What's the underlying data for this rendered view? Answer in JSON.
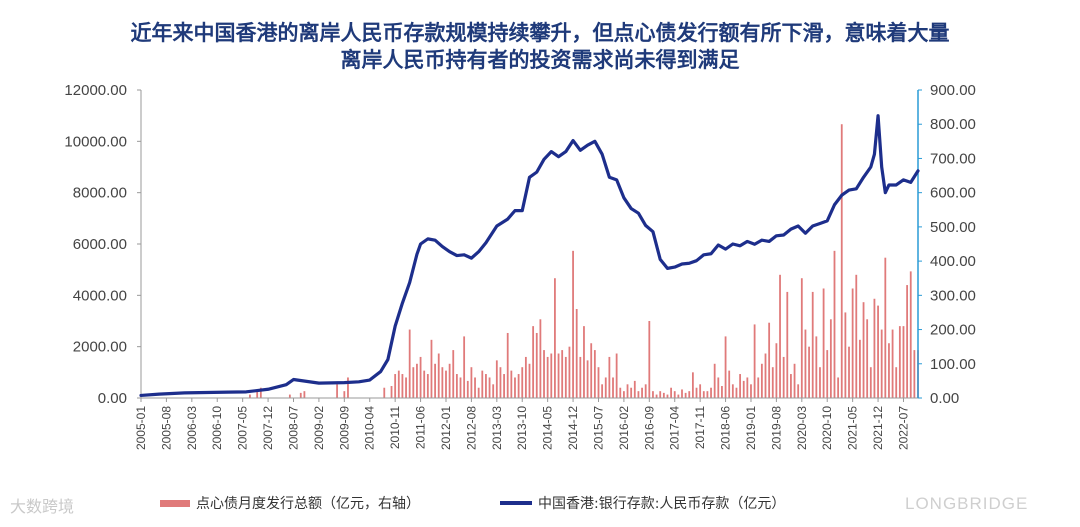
{
  "title": {
    "line1": "近年来中国香港的离岸人民币存款规模持续攀升，但点心债发行额有所下滑，意味着大量",
    "line2": "离岸人民币持有者的投资需求尚未得到满足"
  },
  "watermarks": {
    "left": "大数跨境",
    "right": "LONGBRIDGE"
  },
  "colors": {
    "bars": "#e07a7a",
    "line": "#1d2e8c",
    "axis_right": "#2a9bd6"
  },
  "chart_data": {
    "type": "bar+line",
    "x_tick_labels": [
      "2005-01",
      "2005-08",
      "2006-03",
      "2006-10",
      "2007-05",
      "2007-12",
      "2008-07",
      "2009-02",
      "2009-09",
      "2010-04",
      "2010-11",
      "2011-06",
      "2012-01",
      "2012-08",
      "2013-03",
      "2013-10",
      "2014-05",
      "2014-12",
      "2015-07",
      "2016-02",
      "2016-09",
      "2017-04",
      "2017-11",
      "2018-06",
      "2019-01",
      "2019-08",
      "2020-03",
      "2020-10",
      "2021-05",
      "2021-12",
      "2022-07"
    ],
    "left_axis": {
      "ylim": [
        0,
        12000
      ],
      "ticks": [
        "0.00",
        "2000.00",
        "4000.00",
        "6000.00",
        "8000.00",
        "10000.00",
        "12000.00"
      ]
    },
    "right_axis": {
      "ylim": [
        0,
        900
      ],
      "ticks": [
        "0.00",
        "100.00",
        "200.00",
        "300.00",
        "400.00",
        "500.00",
        "600.00",
        "700.00",
        "800.00",
        "900.00"
      ]
    },
    "grid": false,
    "legend_position": "bottom",
    "series": [
      {
        "name": "点心债月度发行总额（亿元，右轴）",
        "type": "bar",
        "axis": "right",
        "points": [
          [
            "2007-07",
            10
          ],
          [
            "2007-09",
            20
          ],
          [
            "2007-10",
            30
          ],
          [
            "2008-06",
            10
          ],
          [
            "2008-09",
            15
          ],
          [
            "2008-10",
            20
          ],
          [
            "2009-07",
            40
          ],
          [
            "2009-09",
            20
          ],
          [
            "2009-10",
            60
          ],
          [
            "2010-08",
            30
          ],
          [
            "2010-10",
            35
          ],
          [
            "2010-11",
            70
          ],
          [
            "2010-12",
            80
          ],
          [
            "2011-01",
            70
          ],
          [
            "2011-02",
            60
          ],
          [
            "2011-03",
            200
          ],
          [
            "2011-04",
            90
          ],
          [
            "2011-05",
            100
          ],
          [
            "2011-06",
            120
          ],
          [
            "2011-07",
            80
          ],
          [
            "2011-08",
            70
          ],
          [
            "2011-09",
            170
          ],
          [
            "2011-10",
            100
          ],
          [
            "2011-11",
            130
          ],
          [
            "2011-12",
            90
          ],
          [
            "2012-01",
            80
          ],
          [
            "2012-02",
            100
          ],
          [
            "2012-03",
            140
          ],
          [
            "2012-04",
            70
          ],
          [
            "2012-05",
            60
          ],
          [
            "2012-06",
            180
          ],
          [
            "2012-07",
            50
          ],
          [
            "2012-08",
            90
          ],
          [
            "2012-09",
            60
          ],
          [
            "2012-10",
            30
          ],
          [
            "2012-11",
            80
          ],
          [
            "2012-12",
            70
          ],
          [
            "2013-01",
            60
          ],
          [
            "2013-02",
            40
          ],
          [
            "2013-03",
            110
          ],
          [
            "2013-04",
            90
          ],
          [
            "2013-05",
            70
          ],
          [
            "2013-06",
            190
          ],
          [
            "2013-07",
            80
          ],
          [
            "2013-08",
            60
          ],
          [
            "2013-09",
            70
          ],
          [
            "2013-10",
            90
          ],
          [
            "2013-11",
            120
          ],
          [
            "2013-12",
            100
          ],
          [
            "2014-01",
            210
          ],
          [
            "2014-02",
            190
          ],
          [
            "2014-03",
            230
          ],
          [
            "2014-04",
            140
          ],
          [
            "2014-05",
            120
          ],
          [
            "2014-06",
            130
          ],
          [
            "2014-07",
            350
          ],
          [
            "2014-08",
            130
          ],
          [
            "2014-09",
            140
          ],
          [
            "2014-10",
            120
          ],
          [
            "2014-11",
            150
          ],
          [
            "2014-12",
            430
          ],
          [
            "2015-01",
            260
          ],
          [
            "2015-02",
            120
          ],
          [
            "2015-03",
            210
          ],
          [
            "2015-04",
            110
          ],
          [
            "2015-05",
            160
          ],
          [
            "2015-06",
            140
          ],
          [
            "2015-07",
            90
          ],
          [
            "2015-08",
            40
          ],
          [
            "2015-09",
            60
          ],
          [
            "2015-10",
            120
          ],
          [
            "2015-11",
            60
          ],
          [
            "2015-12",
            130
          ],
          [
            "2016-01",
            30
          ],
          [
            "2016-02",
            20
          ],
          [
            "2016-03",
            40
          ],
          [
            "2016-04",
            30
          ],
          [
            "2016-05",
            50
          ],
          [
            "2016-06",
            20
          ],
          [
            "2016-07",
            30
          ],
          [
            "2016-08",
            40
          ],
          [
            "2016-09",
            225
          ],
          [
            "2016-10",
            20
          ],
          [
            "2016-11",
            10
          ],
          [
            "2016-12",
            20
          ],
          [
            "2017-01",
            15
          ],
          [
            "2017-02",
            10
          ],
          [
            "2017-03",
            30
          ],
          [
            "2017-04",
            20
          ],
          [
            "2017-05",
            10
          ],
          [
            "2017-06",
            25
          ],
          [
            "2017-07",
            15
          ],
          [
            "2017-08",
            20
          ],
          [
            "2017-09",
            75
          ],
          [
            "2017-10",
            30
          ],
          [
            "2017-11",
            40
          ],
          [
            "2017-12",
            20
          ],
          [
            "2018-01",
            20
          ],
          [
            "2018-02",
            30
          ],
          [
            "2018-03",
            100
          ],
          [
            "2018-04",
            60
          ],
          [
            "2018-05",
            35
          ],
          [
            "2018-06",
            180
          ],
          [
            "2018-07",
            80
          ],
          [
            "2018-08",
            40
          ],
          [
            "2018-09",
            30
          ],
          [
            "2018-10",
            70
          ],
          [
            "2018-11",
            50
          ],
          [
            "2018-12",
            60
          ],
          [
            "2019-01",
            40
          ],
          [
            "2019-02",
            215
          ],
          [
            "2019-03",
            60
          ],
          [
            "2019-04",
            100
          ],
          [
            "2019-05",
            130
          ],
          [
            "2019-06",
            220
          ],
          [
            "2019-07",
            90
          ],
          [
            "2019-08",
            160
          ],
          [
            "2019-09",
            360
          ],
          [
            "2019-10",
            120
          ],
          [
            "2019-11",
            310
          ],
          [
            "2019-12",
            70
          ],
          [
            "2020-01",
            100
          ],
          [
            "2020-02",
            40
          ],
          [
            "2020-03",
            350
          ],
          [
            "2020-04",
            200
          ],
          [
            "2020-05",
            150
          ],
          [
            "2020-06",
            310
          ],
          [
            "2020-07",
            180
          ],
          [
            "2020-08",
            90
          ],
          [
            "2020-09",
            320
          ],
          [
            "2020-10",
            140
          ],
          [
            "2020-11",
            230
          ],
          [
            "2020-12",
            430
          ],
          [
            "2021-01",
            60
          ],
          [
            "2021-02",
            800
          ],
          [
            "2021-03",
            250
          ],
          [
            "2021-04",
            150
          ],
          [
            "2021-05",
            320
          ],
          [
            "2021-06",
            360
          ],
          [
            "2021-07",
            170
          ],
          [
            "2021-08",
            280
          ],
          [
            "2021-09",
            230
          ],
          [
            "2021-10",
            90
          ],
          [
            "2021-11",
            290
          ],
          [
            "2021-12",
            270
          ],
          [
            "2022-01",
            200
          ],
          [
            "2022-02",
            410
          ],
          [
            "2022-03",
            160
          ],
          [
            "2022-04",
            200
          ],
          [
            "2022-05",
            90
          ],
          [
            "2022-06",
            210
          ],
          [
            "2022-07",
            210
          ],
          [
            "2022-08",
            330
          ],
          [
            "2022-09",
            370
          ],
          [
            "2022-10",
            140
          ],
          [
            "2022-11",
            140
          ]
        ]
      },
      {
        "name": "中国香港:银行存款:人民币存款（亿元）",
        "type": "line",
        "axis": "left",
        "points": [
          [
            "2005-01",
            100
          ],
          [
            "2005-06",
            150
          ],
          [
            "2006-01",
            200
          ],
          [
            "2007-01",
            230
          ],
          [
            "2007-06",
            240
          ],
          [
            "2007-12",
            340
          ],
          [
            "2008-05",
            520
          ],
          [
            "2008-07",
            720
          ],
          [
            "2009-02",
            580
          ],
          [
            "2009-09",
            600
          ],
          [
            "2010-01",
            630
          ],
          [
            "2010-04",
            700
          ],
          [
            "2010-07",
            1030
          ],
          [
            "2010-09",
            1500
          ],
          [
            "2010-11",
            2800
          ],
          [
            "2011-01",
            3700
          ],
          [
            "2011-03",
            4500
          ],
          [
            "2011-05",
            5600
          ],
          [
            "2011-06",
            6000
          ],
          [
            "2011-08",
            6200
          ],
          [
            "2011-10",
            6150
          ],
          [
            "2011-12",
            5900
          ],
          [
            "2012-02",
            5700
          ],
          [
            "2012-04",
            5550
          ],
          [
            "2012-06",
            5580
          ],
          [
            "2012-08",
            5450
          ],
          [
            "2012-10",
            5700
          ],
          [
            "2012-12",
            6050
          ],
          [
            "2013-03",
            6700
          ],
          [
            "2013-06",
            6970
          ],
          [
            "2013-08",
            7300
          ],
          [
            "2013-10",
            7300
          ],
          [
            "2013-12",
            8600
          ],
          [
            "2014-02",
            8800
          ],
          [
            "2014-04",
            9300
          ],
          [
            "2014-06",
            9600
          ],
          [
            "2014-08",
            9400
          ],
          [
            "2014-10",
            9600
          ],
          [
            "2014-12",
            10030
          ],
          [
            "2015-02",
            9650
          ],
          [
            "2015-04",
            9850
          ],
          [
            "2015-06",
            10000
          ],
          [
            "2015-08",
            9500
          ],
          [
            "2015-10",
            8600
          ],
          [
            "2015-12",
            8500
          ],
          [
            "2016-02",
            7800
          ],
          [
            "2016-04",
            7380
          ],
          [
            "2016-06",
            7200
          ],
          [
            "2016-08",
            6720
          ],
          [
            "2016-10",
            6480
          ],
          [
            "2016-12",
            5400
          ],
          [
            "2017-02",
            5050
          ],
          [
            "2017-04",
            5100
          ],
          [
            "2017-06",
            5220
          ],
          [
            "2017-08",
            5250
          ],
          [
            "2017-10",
            5350
          ],
          [
            "2017-12",
            5580
          ],
          [
            "2018-02",
            5620
          ],
          [
            "2018-04",
            5960
          ],
          [
            "2018-06",
            5800
          ],
          [
            "2018-08",
            6000
          ],
          [
            "2018-10",
            5930
          ],
          [
            "2018-12",
            6100
          ],
          [
            "2019-02",
            5990
          ],
          [
            "2019-04",
            6150
          ],
          [
            "2019-06",
            6100
          ],
          [
            "2019-08",
            6320
          ],
          [
            "2019-10",
            6350
          ],
          [
            "2019-12",
            6580
          ],
          [
            "2020-02",
            6700
          ],
          [
            "2020-04",
            6420
          ],
          [
            "2020-06",
            6700
          ],
          [
            "2020-08",
            6800
          ],
          [
            "2020-10",
            6900
          ],
          [
            "2020-12",
            7530
          ],
          [
            "2021-02",
            7900
          ],
          [
            "2021-04",
            8100
          ],
          [
            "2021-06",
            8150
          ],
          [
            "2021-08",
            8600
          ],
          [
            "2021-10",
            9000
          ],
          [
            "2021-11",
            9500
          ],
          [
            "2021-12",
            11000
          ],
          [
            "2022-01",
            9000
          ],
          [
            "2022-02",
            8000
          ],
          [
            "2022-03",
            8300
          ],
          [
            "2022-05",
            8300
          ],
          [
            "2022-07",
            8500
          ],
          [
            "2022-09",
            8400
          ],
          [
            "2022-11",
            8850
          ]
        ]
      }
    ]
  }
}
